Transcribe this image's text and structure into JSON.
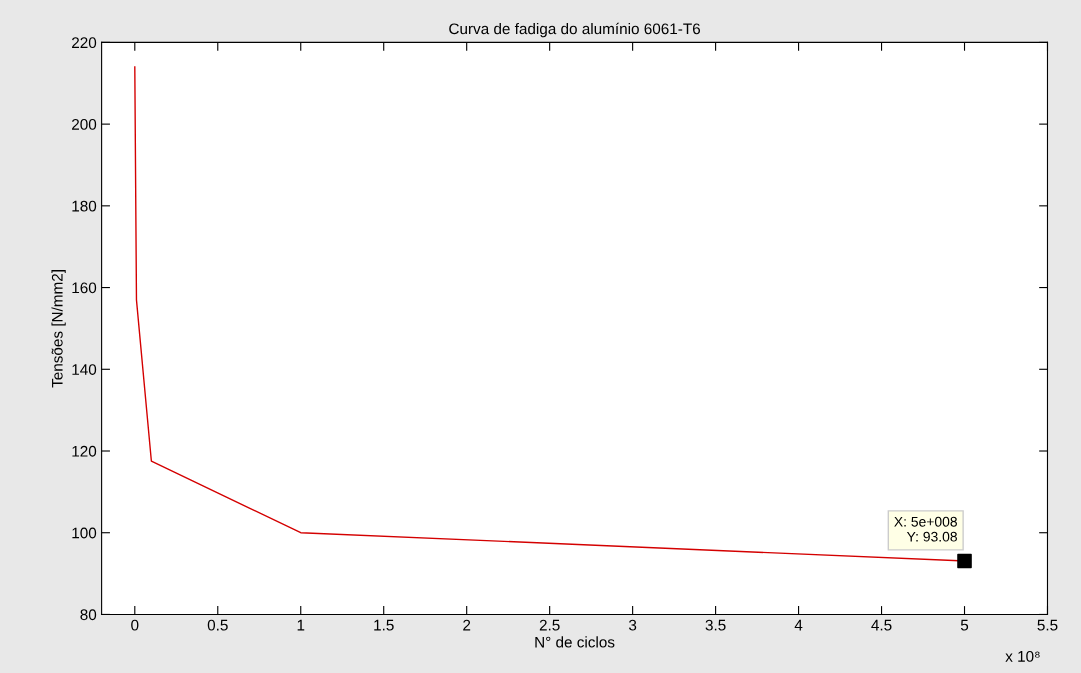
{
  "chart_data": {
    "type": "line",
    "title": "Curva de fadiga do alumínio 6061-T6",
    "xlabel": "N° de ciclos",
    "ylabel": "Tensões [N/mm2]",
    "series": [
      {
        "color": "#d40000",
        "x": [
          0,
          0.01,
          0.1,
          1,
          5
        ],
        "values": [
          214,
          157,
          117.5,
          100,
          93.08
        ]
      },
      {
        "type": "scatter",
        "color": "#000000",
        "marker": "square",
        "x": [
          5
        ],
        "values": [
          93.08
        ]
      }
    ],
    "xlim": [
      -0.2,
      5.5
    ],
    "xticks": [
      0,
      0.5,
      1,
      1.5,
      2,
      2.5,
      3,
      3.5,
      4,
      4.5,
      5,
      5.5
    ],
    "ylim": [
      80,
      220
    ],
    "yticks": [
      80,
      100,
      120,
      140,
      160,
      180,
      200,
      220
    ],
    "annotations": [
      "x 10⁸",
      {
        "text": "X: 5e+008\nY: 93.08",
        "x": 5,
        "y": 93.08
      }
    ],
    "grid": false,
    "legend": false
  }
}
